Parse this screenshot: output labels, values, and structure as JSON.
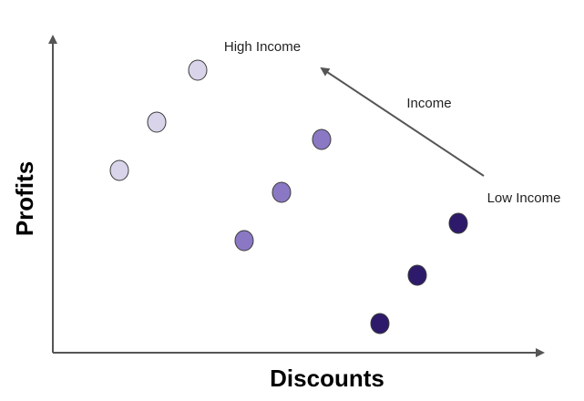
{
  "labels": {
    "x_axis": "Discounts",
    "y_axis": "Profits",
    "trend": "Income",
    "high_end": "High Income",
    "low_end": "Low Income"
  },
  "colors": {
    "high_income": "#d9d4ea",
    "mid_income": "#8b78c4",
    "low_income": "#2e1a6b",
    "axis": "#555555"
  },
  "groups": [
    {
      "name": "high-income",
      "color_key": "high_income",
      "count": 3
    },
    {
      "name": "mid-income",
      "color_key": "mid_income",
      "count": 3
    },
    {
      "name": "low-income",
      "color_key": "low_income",
      "count": 3
    }
  ]
}
